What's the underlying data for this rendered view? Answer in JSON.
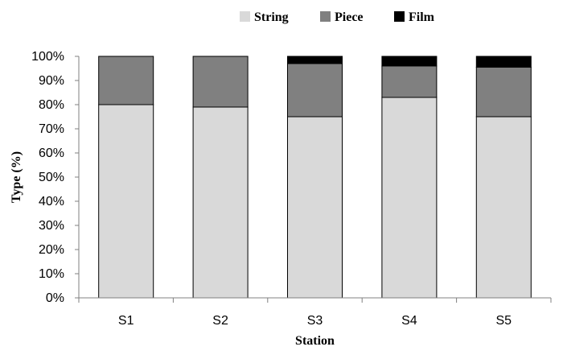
{
  "chart_data": {
    "type": "bar",
    "stacked": true,
    "categories": [
      "S1",
      "S2",
      "S3",
      "S4",
      "S5"
    ],
    "series": [
      {
        "name": "String",
        "values": [
          80,
          79,
          75,
          83,
          75
        ],
        "color": "#d9d9d9"
      },
      {
        "name": "Piece",
        "values": [
          20,
          21,
          22,
          13,
          20.5
        ],
        "color": "#808080"
      },
      {
        "name": "Film",
        "values": [
          0,
          0,
          3,
          4,
          4.5
        ],
        "color": "#000000"
      }
    ],
    "xlabel": "Station",
    "ylabel": "Type (%)",
    "ylim": [
      0,
      100
    ],
    "yticks": [
      "0%",
      "10%",
      "20%",
      "30%",
      "40%",
      "50%",
      "60%",
      "70%",
      "80%",
      "90%",
      "100%"
    ],
    "grid": false,
    "legend_position": "top"
  }
}
